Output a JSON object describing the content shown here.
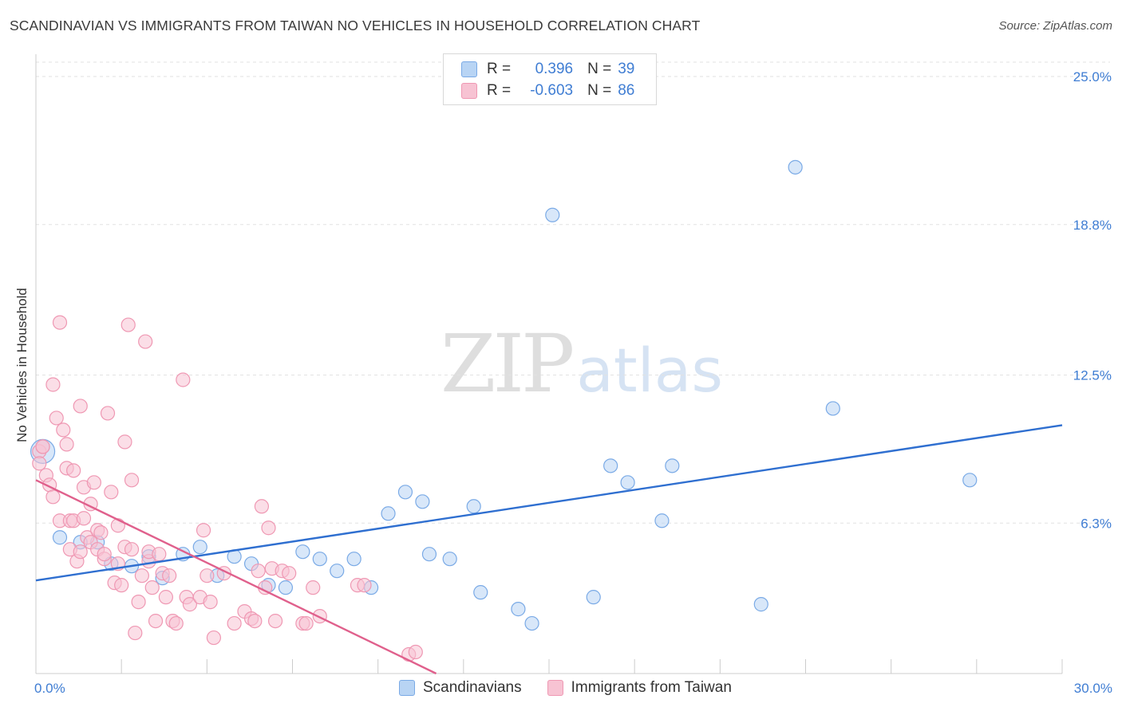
{
  "header": {
    "title": "SCANDINAVIAN VS IMMIGRANTS FROM TAIWAN NO VEHICLES IN HOUSEHOLD CORRELATION CHART",
    "source": "Source: ZipAtlas.com"
  },
  "watermark": {
    "zip": "ZIP",
    "atlas": "atlas"
  },
  "legend": {
    "rows": [
      {
        "r_label": "R =",
        "r_value": "0.396",
        "n_label": "N =",
        "n_value": "39"
      },
      {
        "r_label": "R =",
        "r_value": "-0.603",
        "n_label": "N =",
        "n_value": "86"
      }
    ]
  },
  "colors": {
    "blue_fill": "#b8d4f4",
    "blue_stroke": "#7aaae6",
    "blue_line": "#2f6fd0",
    "pink_fill": "#f7c3d3",
    "pink_stroke": "#ef98b3",
    "pink_line": "#e0608c",
    "tick_text": "#3f7dd3",
    "grid": "#e2e2e2"
  },
  "chart_data": {
    "type": "scatter",
    "title": "SCANDINAVIAN VS IMMIGRANTS FROM TAIWAN NO VEHICLES IN HOUSEHOLD CORRELATION CHART",
    "xlabel": "",
    "ylabel": "No Vehicles in Household",
    "xlim": [
      0,
      30
    ],
    "ylim": [
      0,
      25.0
    ],
    "x_tick_labels": [
      "0.0%",
      "30.0%"
    ],
    "y_ticks": [
      6.3,
      12.5,
      18.8,
      25.0
    ],
    "y_tick_labels": [
      "6.3%",
      "12.5%",
      "18.8%",
      "25.0%"
    ],
    "grid": true,
    "legend_position": "top-center",
    "series": [
      {
        "name": "Scandinavians",
        "color": "#b8d4f4",
        "r": 0.396,
        "n": 39,
        "trend": {
          "x": [
            0,
            30
          ],
          "y": [
            3.9,
            10.4
          ]
        },
        "points": [
          {
            "x": 0.2,
            "y": 9.3,
            "big": true
          },
          {
            "x": 0.7,
            "y": 5.7
          },
          {
            "x": 1.3,
            "y": 5.5
          },
          {
            "x": 1.8,
            "y": 5.5
          },
          {
            "x": 2.2,
            "y": 4.6
          },
          {
            "x": 2.8,
            "y": 4.5
          },
          {
            "x": 3.3,
            "y": 4.9
          },
          {
            "x": 3.7,
            "y": 4.0
          },
          {
            "x": 4.3,
            "y": 5.0
          },
          {
            "x": 4.8,
            "y": 5.3
          },
          {
            "x": 5.3,
            "y": 4.1
          },
          {
            "x": 5.8,
            "y": 4.9
          },
          {
            "x": 6.3,
            "y": 4.6
          },
          {
            "x": 6.8,
            "y": 3.7
          },
          {
            "x": 7.3,
            "y": 3.6
          },
          {
            "x": 7.8,
            "y": 5.1
          },
          {
            "x": 8.3,
            "y": 4.8
          },
          {
            "x": 8.8,
            "y": 4.3
          },
          {
            "x": 9.3,
            "y": 4.8
          },
          {
            "x": 9.8,
            "y": 3.6
          },
          {
            "x": 10.3,
            "y": 6.7
          },
          {
            "x": 10.8,
            "y": 7.6
          },
          {
            "x": 11.3,
            "y": 7.2
          },
          {
            "x": 11.5,
            "y": 5.0
          },
          {
            "x": 12.1,
            "y": 4.8
          },
          {
            "x": 12.8,
            "y": 7.0
          },
          {
            "x": 13.0,
            "y": 3.4
          },
          {
            "x": 14.1,
            "y": 2.7
          },
          {
            "x": 14.5,
            "y": 2.1
          },
          {
            "x": 15.1,
            "y": 19.2
          },
          {
            "x": 16.3,
            "y": 3.2
          },
          {
            "x": 16.8,
            "y": 8.7
          },
          {
            "x": 17.3,
            "y": 8.0
          },
          {
            "x": 18.3,
            "y": 6.4
          },
          {
            "x": 18.6,
            "y": 8.7
          },
          {
            "x": 21.2,
            "y": 2.9
          },
          {
            "x": 22.2,
            "y": 21.2
          },
          {
            "x": 23.3,
            "y": 11.1
          },
          {
            "x": 27.3,
            "y": 8.1
          }
        ]
      },
      {
        "name": "Immigrants from Taiwan",
        "color": "#f7c3d3",
        "r": -0.603,
        "n": 86,
        "trend": {
          "x": [
            0,
            11.7
          ],
          "y": [
            8.1,
            0
          ]
        },
        "points": [
          {
            "x": 0.1,
            "y": 9.3
          },
          {
            "x": 0.1,
            "y": 8.8
          },
          {
            "x": 0.2,
            "y": 9.5
          },
          {
            "x": 0.3,
            "y": 8.3
          },
          {
            "x": 0.4,
            "y": 7.9
          },
          {
            "x": 0.5,
            "y": 7.4
          },
          {
            "x": 0.5,
            "y": 12.1
          },
          {
            "x": 0.6,
            "y": 10.7
          },
          {
            "x": 0.7,
            "y": 14.7
          },
          {
            "x": 0.7,
            "y": 6.4
          },
          {
            "x": 0.8,
            "y": 10.2
          },
          {
            "x": 0.9,
            "y": 8.6
          },
          {
            "x": 0.9,
            "y": 9.6
          },
          {
            "x": 1.0,
            "y": 6.4
          },
          {
            "x": 1.0,
            "y": 5.2
          },
          {
            "x": 1.1,
            "y": 6.4
          },
          {
            "x": 1.1,
            "y": 8.5
          },
          {
            "x": 1.2,
            "y": 4.7
          },
          {
            "x": 1.3,
            "y": 5.1
          },
          {
            "x": 1.3,
            "y": 11.2
          },
          {
            "x": 1.4,
            "y": 7.8
          },
          {
            "x": 1.4,
            "y": 6.5
          },
          {
            "x": 1.5,
            "y": 5.7
          },
          {
            "x": 1.6,
            "y": 7.1
          },
          {
            "x": 1.6,
            "y": 5.5
          },
          {
            "x": 1.7,
            "y": 8.0
          },
          {
            "x": 1.8,
            "y": 5.2
          },
          {
            "x": 1.8,
            "y": 6.0
          },
          {
            "x": 1.9,
            "y": 5.9
          },
          {
            "x": 2.0,
            "y": 4.8
          },
          {
            "x": 2.0,
            "y": 5.0
          },
          {
            "x": 2.1,
            "y": 10.9
          },
          {
            "x": 2.2,
            "y": 7.6
          },
          {
            "x": 2.3,
            "y": 3.8
          },
          {
            "x": 2.4,
            "y": 4.6
          },
          {
            "x": 2.4,
            "y": 6.2
          },
          {
            "x": 2.5,
            "y": 3.7
          },
          {
            "x": 2.6,
            "y": 5.3
          },
          {
            "x": 2.6,
            "y": 9.7
          },
          {
            "x": 2.7,
            "y": 14.6
          },
          {
            "x": 2.8,
            "y": 8.1
          },
          {
            "x": 2.8,
            "y": 5.2
          },
          {
            "x": 2.9,
            "y": 1.7
          },
          {
            "x": 3.0,
            "y": 3.0
          },
          {
            "x": 3.1,
            "y": 4.1
          },
          {
            "x": 3.2,
            "y": 13.9
          },
          {
            "x": 3.3,
            "y": 4.7
          },
          {
            "x": 3.3,
            "y": 5.1
          },
          {
            "x": 3.4,
            "y": 3.6
          },
          {
            "x": 3.5,
            "y": 2.2
          },
          {
            "x": 3.6,
            "y": 5.0
          },
          {
            "x": 3.7,
            "y": 4.2
          },
          {
            "x": 3.8,
            "y": 3.2
          },
          {
            "x": 3.9,
            "y": 4.1
          },
          {
            "x": 4.0,
            "y": 2.2
          },
          {
            "x": 4.1,
            "y": 2.1
          },
          {
            "x": 4.3,
            "y": 12.3
          },
          {
            "x": 4.4,
            "y": 3.2
          },
          {
            "x": 4.5,
            "y": 2.9
          },
          {
            "x": 4.8,
            "y": 3.2
          },
          {
            "x": 4.9,
            "y": 6.0
          },
          {
            "x": 5.0,
            "y": 4.1
          },
          {
            "x": 5.1,
            "y": 3.0
          },
          {
            "x": 5.2,
            "y": 1.5
          },
          {
            "x": 5.5,
            "y": 4.2
          },
          {
            "x": 5.8,
            "y": 2.1
          },
          {
            "x": 6.1,
            "y": 2.6
          },
          {
            "x": 6.3,
            "y": 2.3
          },
          {
            "x": 6.4,
            "y": 2.2
          },
          {
            "x": 6.5,
            "y": 4.3
          },
          {
            "x": 6.6,
            "y": 7.0
          },
          {
            "x": 6.7,
            "y": 3.6
          },
          {
            "x": 6.8,
            "y": 6.1
          },
          {
            "x": 6.9,
            "y": 4.4
          },
          {
            "x": 7.0,
            "y": 2.2
          },
          {
            "x": 7.2,
            "y": 4.3
          },
          {
            "x": 7.4,
            "y": 4.2
          },
          {
            "x": 7.8,
            "y": 2.1
          },
          {
            "x": 7.9,
            "y": 2.1
          },
          {
            "x": 8.1,
            "y": 3.6
          },
          {
            "x": 8.3,
            "y": 2.4
          },
          {
            "x": 9.4,
            "y": 3.7
          },
          {
            "x": 9.6,
            "y": 3.7
          },
          {
            "x": 10.9,
            "y": 0.8
          },
          {
            "x": 11.1,
            "y": 0.9
          },
          {
            "x": 0.2,
            "y": 9.5
          }
        ]
      }
    ]
  }
}
